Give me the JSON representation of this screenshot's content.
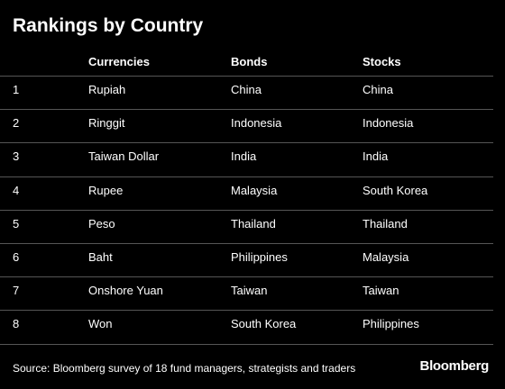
{
  "header": {
    "title": "Rankings by Country"
  },
  "table": {
    "columns": [
      "Currencies",
      "Bonds",
      "Stocks"
    ],
    "rows": [
      [
        "1",
        "Rupiah",
        "China",
        "China"
      ],
      [
        "2",
        "Ringgit",
        "Indonesia",
        "Indonesia"
      ],
      [
        "3",
        "Taiwan Dollar",
        "India",
        "India"
      ],
      [
        "4",
        "Rupee",
        "Malaysia",
        "South Korea"
      ],
      [
        "5",
        "Peso",
        "Thailand",
        "Thailand"
      ],
      [
        "6",
        "Baht",
        "Philippines",
        "Malaysia"
      ],
      [
        "7",
        "Onshore Yuan",
        "Taiwan",
        "Taiwan"
      ],
      [
        "8",
        "Won",
        "South Korea",
        "Philippines"
      ]
    ]
  },
  "footer": {
    "source": "Source: Bloomberg survey of 18 fund managers, strategists and traders",
    "brand": "Bloomberg"
  }
}
